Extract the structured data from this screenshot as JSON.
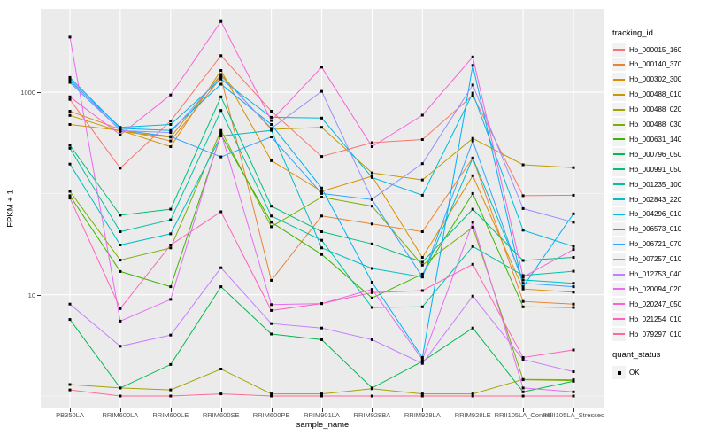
{
  "chart_data": {
    "type": "line",
    "title": "",
    "xlabel": "sample_name",
    "ylabel": "FPKM + 1",
    "y_scale": "log10",
    "y_tick_labels": [
      "10",
      "1000"
    ],
    "y_ticks": [
      10,
      1000
    ],
    "y_minor_gridlines": [
      1,
      100
    ],
    "ylim": [
      0.75,
      6500
    ],
    "grid_color": "#FFFFFF",
    "panel_bg": "#EBEBEB",
    "point_color": "#000000",
    "legend_title": "tracking_id",
    "legend_key_bg": "#F2F2F2",
    "categories": [
      "PB350LA",
      "RRIM600LA",
      "RRIM600LE",
      "RRIM600SE",
      "RRIM600PE",
      "RRIM901LA",
      "RRIM928BA",
      "RRIM928LA",
      "RRIM928LE",
      "RRII105LA_Control",
      "RRII105LA_Stressed"
    ],
    "series": [
      {
        "name": "Hb_000015_160",
        "color": "#F8766D",
        "values": [
          850,
          178,
          520,
          2300,
          650,
          232,
          318,
          341,
          930,
          95,
          96
        ]
      },
      {
        "name": "Hb_000140_370",
        "color": "#EA8331",
        "values": [
          650,
          430,
          330,
          1400,
          13.9,
          60,
          50,
          42,
          224,
          8.6,
          8.1
        ]
      },
      {
        "name": "Hb_000302_300",
        "color": "#D89000",
        "values": [
          480,
          420,
          290,
          1640,
          211,
          105,
          148,
          23.4,
          150,
          11.4,
          10.6
        ]
      },
      {
        "name": "Hb_000488_010",
        "color": "#C09B00",
        "values": [
          590,
          410,
          360,
          1500,
          430,
          450,
          160,
          136,
          350,
          192,
          180
        ]
      },
      {
        "name": "Hb_000488_020",
        "color": "#A3A500",
        "values": [
          1.3,
          1.2,
          1.15,
          1.85,
          1.05,
          1.05,
          1.18,
          1.05,
          1.05,
          1.46,
          1.45
        ]
      },
      {
        "name": "Hb_000488_030",
        "color": "#7CAE00",
        "values": [
          105,
          22,
          29,
          420,
          47,
          92,
          75,
          19.6,
          46.5,
          1.45,
          1.42
        ]
      },
      {
        "name": "Hb_000631_140",
        "color": "#39B600",
        "values": [
          95,
          17,
          12,
          380,
          52,
          25,
          9.3,
          16,
          100,
          7.6,
          7.5
        ]
      },
      {
        "name": "Hb_000796_050",
        "color": "#00BB4E",
        "values": [
          5.7,
          1.2,
          2.05,
          12,
          4.1,
          3.6,
          1.2,
          2.2,
          4.7,
          1.1,
          1.4
        ]
      },
      {
        "name": "Hb_000991_050",
        "color": "#00BF7D",
        "values": [
          300,
          61,
          70,
          900,
          75,
          42,
          31.8,
          21,
          70,
          21.8,
          23.4
        ]
      },
      {
        "name": "Hb_001235_100",
        "color": "#00C1A3",
        "values": [
          280,
          42,
          55,
          660,
          60,
          34.5,
          7.5,
          7.6,
          30,
          15.5,
          17.1
        ]
      },
      {
        "name": "Hb_002843_220",
        "color": "#00BFC4",
        "values": [
          195,
          31,
          40,
          370,
          420,
          29,
          18.2,
          15,
          224,
          14,
          13
        ]
      },
      {
        "name": "Hb_004296_010",
        "color": "#00BAE0",
        "values": [
          1300,
          450,
          480,
          1350,
          565,
          555,
          144,
          96,
          980,
          43.4,
          30
        ]
      },
      {
        "name": "Hb_006573_010",
        "color": "#00B0F6",
        "values": [
          1400,
          440,
          420,
          1200,
          480,
          113,
          13.3,
          2.4,
          1840,
          12,
          63
        ]
      },
      {
        "name": "Hb_006721_070",
        "color": "#35A2FF",
        "values": [
          1250,
          425,
          365,
          230,
          362,
          100,
          87,
          15,
          330,
          13,
          12
        ]
      },
      {
        "name": "Hb_007257_010",
        "color": "#9590FF",
        "values": [
          1350,
          418,
          400,
          1450,
          440,
          1020,
          88,
          197,
          1180,
          71,
          52
        ]
      },
      {
        "name": "Hb_012753_040",
        "color": "#C77CFF",
        "values": [
          8.1,
          3.1,
          4.0,
          18.5,
          5.2,
          4.7,
          3.6,
          2.1,
          9.7,
          2.3,
          1.74
        ]
      },
      {
        "name": "Hb_020094_020",
        "color": "#E76BF3",
        "values": [
          3500,
          5.5,
          9.0,
          400,
          8.0,
          8.2,
          11.3,
          2.3,
          52,
          1.2,
          1.1
        ]
      },
      {
        "name": "Hb_020247_050",
        "color": "#FA62DB",
        "values": [
          900,
          380,
          940,
          5000,
          525,
          1770,
          290,
          594,
          2230,
          15,
          28
        ]
      },
      {
        "name": "Hb_021254_010",
        "color": "#FF62BC",
        "values": [
          90,
          7.3,
          31,
          66,
          7.0,
          8.2,
          10.5,
          11,
          20,
          2.4,
          2.85
        ]
      },
      {
        "name": "Hb_079297_010",
        "color": "#FF6A98",
        "values": [
          1.15,
          1.0,
          1.0,
          1.05,
          1.0,
          1.0,
          1.0,
          1.0,
          1.0,
          1.0,
          1.0
        ]
      }
    ]
  },
  "quant_legend": {
    "title": "quant_status",
    "items": [
      {
        "label": "OK"
      }
    ]
  }
}
